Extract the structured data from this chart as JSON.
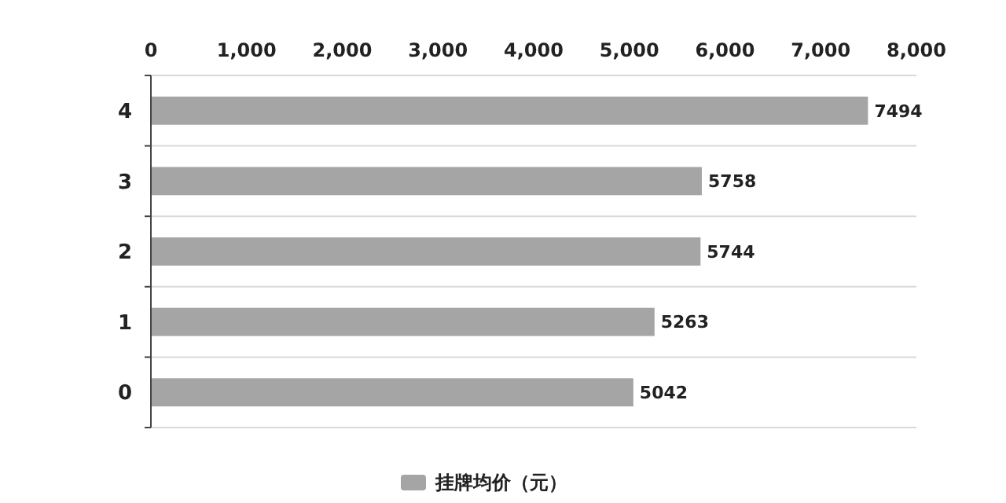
{
  "chart_data": {
    "type": "bar",
    "orientation": "horizontal",
    "categories": [
      "4",
      "3",
      "2",
      "1",
      "0"
    ],
    "series": [
      {
        "name": "挂牌均价（元）",
        "color": "#a5a5a5",
        "values": [
          7494,
          5758,
          5744,
          5263,
          5042
        ]
      }
    ],
    "xlim": [
      0,
      8000
    ],
    "xticks": [
      0,
      {
        "value": 1000,
        "label": "1,000"
      },
      {
        "value": 2000,
        "label": "2,000"
      },
      {
        "value": 3000,
        "label": "3,000"
      },
      {
        "value": 4000,
        "label": "4,000"
      },
      {
        "value": 5000,
        "label": "5,000"
      },
      {
        "value": 6000,
        "label": "6,000"
      },
      {
        "value": 7000,
        "label": "7,000"
      },
      {
        "value": 8000,
        "label": "8,000"
      }
    ],
    "data_labels": true,
    "legend": "bottom",
    "grid": false
  }
}
